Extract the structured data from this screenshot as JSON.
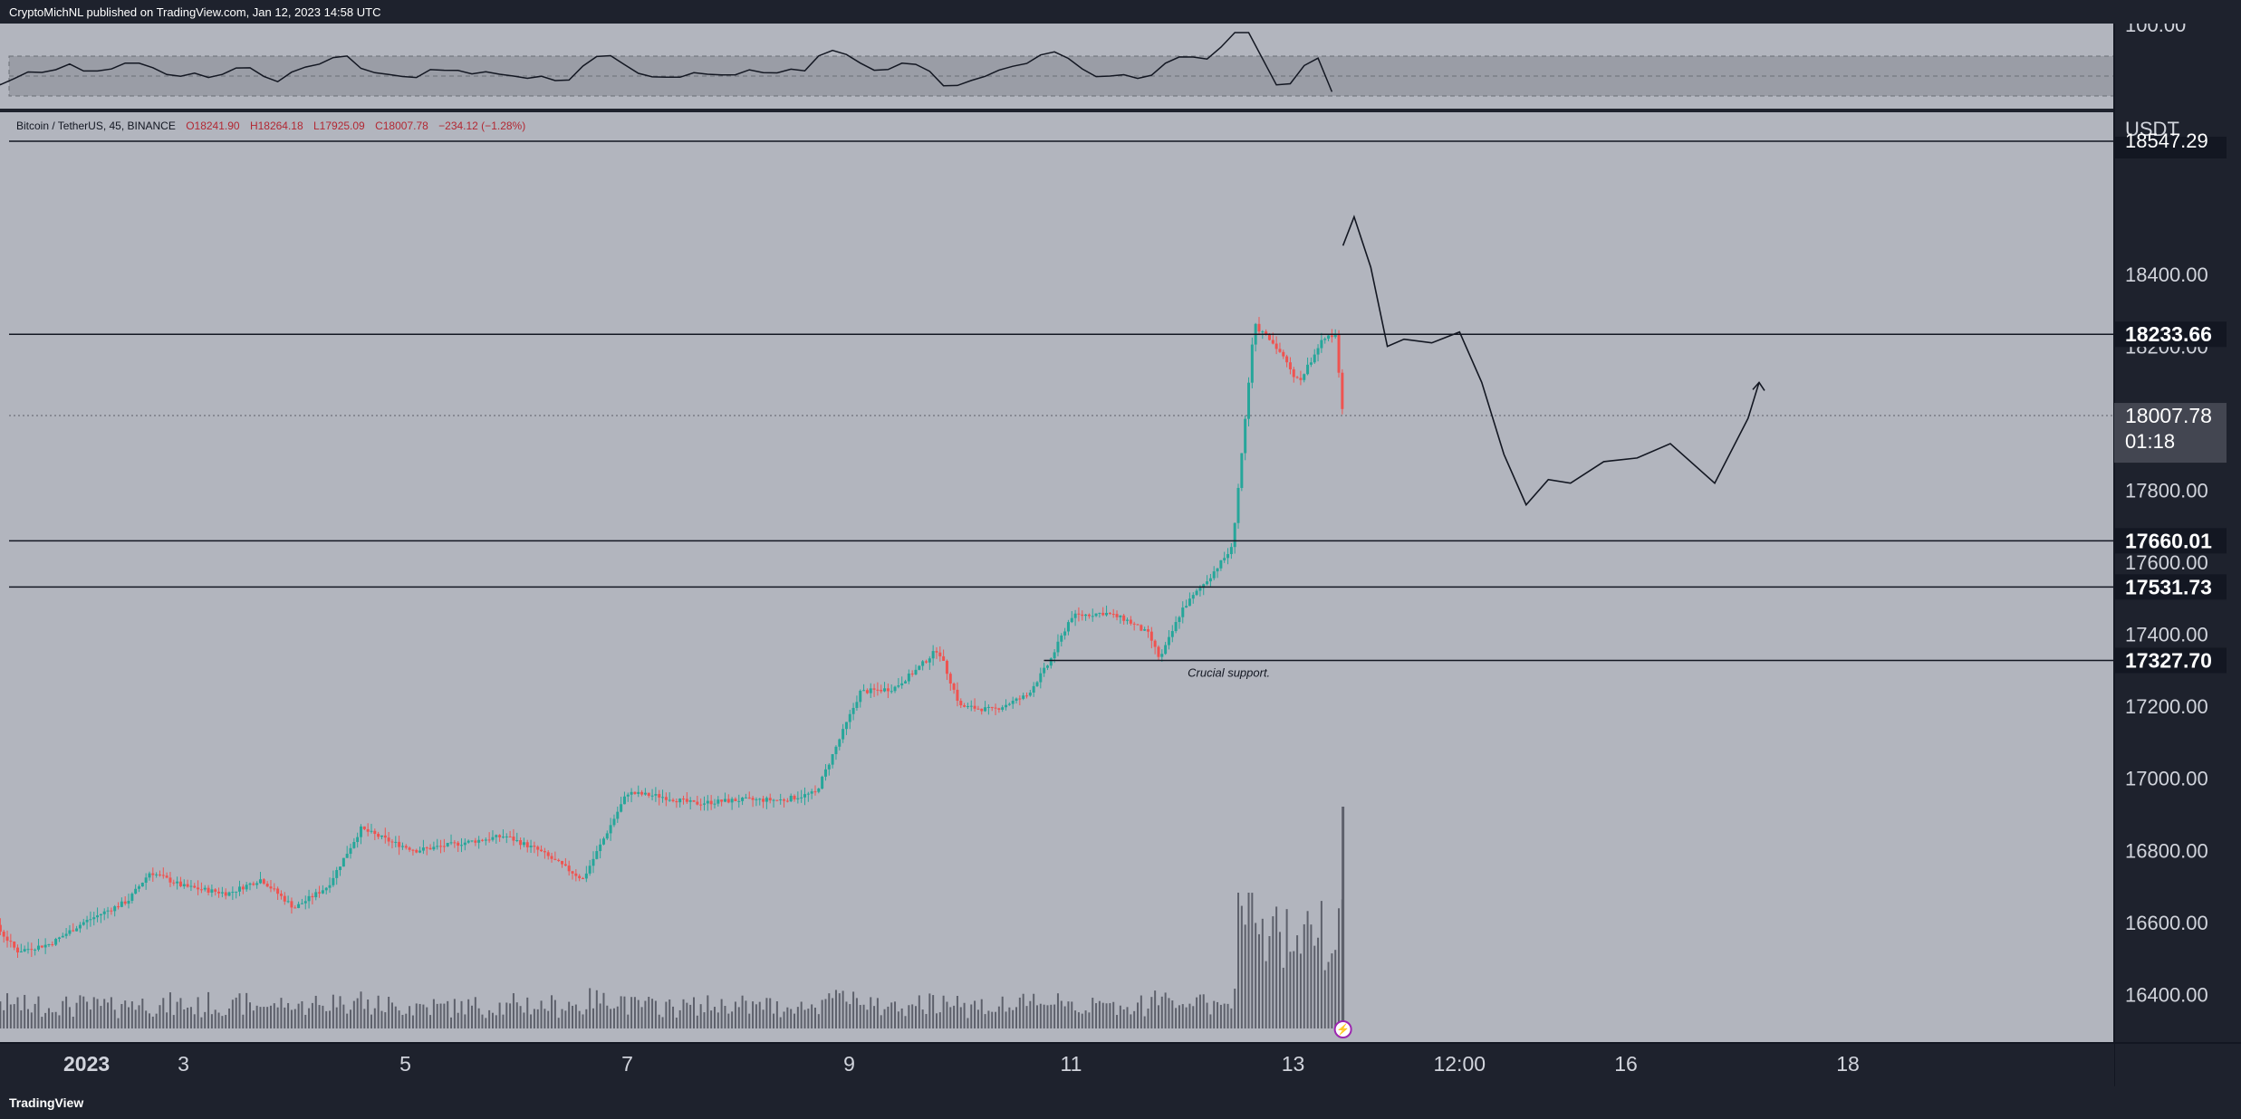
{
  "header": {
    "published_text": "CryptoMichNL published on TradingView.com, Jan 12, 2023 14:58 UTC"
  },
  "footer": {
    "brand": "TradingView"
  },
  "colors": {
    "background": "#b2b5be",
    "frame": "#1e222d",
    "candle_up": "#26a69a",
    "candle_down": "#ef5350",
    "level_line": "#131722",
    "label_bg": "#131722",
    "label_text": "#ffffff",
    "price_label_bg": "#434651"
  },
  "chart_data": {
    "type": "candlestick",
    "symbol_line": {
      "name": "Bitcoin / TetherUS, 45, BINANCE",
      "open": "O18241.90",
      "high": "H18264.18",
      "low": "L17925.09",
      "close": "C18007.78",
      "change": "−234.12 (−1.28%)"
    },
    "currency": "USDT",
    "y_ticks": [
      "16400.00",
      "16600.00",
      "16800.00",
      "17000.00",
      "17200.00",
      "17400.00",
      "17600.00",
      "17800.00",
      "18000.00",
      "18200.00",
      "18400.00"
    ],
    "x_ticks": [
      "2023",
      "3",
      "5",
      "7",
      "9",
      "11",
      "13",
      "12:00",
      "16",
      "18"
    ],
    "ylim": [
      16280,
      18770
    ],
    "horizontal_levels": [
      "18233.66",
      "17660.01",
      "17531.73",
      "17327.70"
    ],
    "current_price": {
      "value": "18007.78",
      "countdown": "01:18"
    },
    "top_partial_label": "18547.29",
    "annotation": "Crucial support.",
    "rsi_panel": {
      "top_tick": "100.00"
    },
    "price_path": [
      [
        1.0,
        16580
      ],
      [
        1.2,
        16630
      ],
      [
        1.5,
        16520
      ],
      [
        1.8,
        16540
      ],
      [
        2.1,
        16600
      ],
      [
        2.5,
        16660
      ],
      [
        2.7,
        16740
      ],
      [
        3.0,
        16700
      ],
      [
        3.4,
        16680
      ],
      [
        3.7,
        16720
      ],
      [
        4.0,
        16640
      ],
      [
        4.3,
        16700
      ],
      [
        4.6,
        16860
      ],
      [
        4.9,
        16820
      ],
      [
        5.1,
        16800
      ],
      [
        5.5,
        16820
      ],
      [
        5.9,
        16840
      ],
      [
        6.2,
        16800
      ],
      [
        6.6,
        16720
      ],
      [
        6.8,
        16840
      ],
      [
        7.0,
        16960
      ],
      [
        7.3,
        16950
      ],
      [
        7.6,
        16930
      ],
      [
        8.0,
        16940
      ],
      [
        8.4,
        16940
      ],
      [
        8.7,
        16960
      ],
      [
        8.9,
        17100
      ],
      [
        9.1,
        17240
      ],
      [
        9.4,
        17250
      ],
      [
        9.6,
        17300
      ],
      [
        9.8,
        17360
      ],
      [
        10.0,
        17200
      ],
      [
        10.3,
        17190
      ],
      [
        10.6,
        17230
      ],
      [
        10.8,
        17320
      ],
      [
        11.0,
        17450
      ],
      [
        11.3,
        17460
      ],
      [
        11.5,
        17440
      ],
      [
        11.7,
        17400
      ],
      [
        11.8,
        17330
      ],
      [
        12.0,
        17470
      ],
      [
        12.25,
        17560
      ],
      [
        12.45,
        17640
      ],
      [
        12.55,
        17940
      ],
      [
        12.65,
        18260
      ],
      [
        12.85,
        18200
      ],
      [
        13.05,
        18100
      ],
      [
        13.25,
        18210
      ],
      [
        13.38,
        18240
      ],
      [
        13.45,
        18007.78
      ]
    ],
    "volume": {
      "spike_index_position": 13.45,
      "spike_relative_height": 1.0
    },
    "drawn_projection": [
      [
        13.45,
        18480
      ],
      [
        13.55,
        18560
      ],
      [
        13.7,
        18420
      ],
      [
        13.85,
        18200
      ],
      [
        14.0,
        18220
      ],
      [
        14.25,
        18210
      ],
      [
        14.5,
        18240
      ],
      [
        14.7,
        18100
      ],
      [
        14.9,
        17900
      ],
      [
        15.1,
        17760
      ],
      [
        15.3,
        17830
      ],
      [
        15.5,
        17820
      ],
      [
        15.8,
        17880
      ],
      [
        16.1,
        17890
      ],
      [
        16.4,
        17930
      ],
      [
        16.8,
        17820
      ],
      [
        17.1,
        18000
      ],
      [
        17.2,
        18100
      ]
    ]
  }
}
